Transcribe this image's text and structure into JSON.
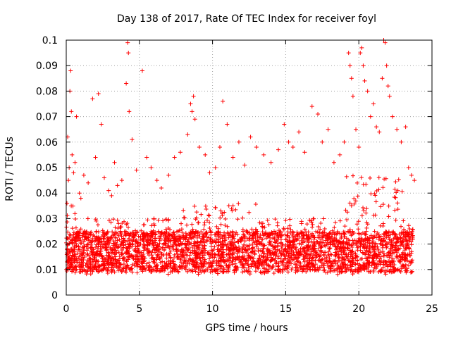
{
  "chart_data": {
    "type": "scatter",
    "title": "Day 138 of 2017, Rate Of TEC Index for receiver foyl",
    "xlabel": "GPS time / hours",
    "ylabel": "ROTI / TECUs",
    "xlim": [
      0,
      25
    ],
    "ylim": [
      0,
      0.1
    ],
    "xticks": [
      "0",
      "5",
      "10",
      "15",
      "20",
      "25"
    ],
    "yticks": [
      "0",
      "0.01",
      "0.02",
      "0.03",
      "0.04",
      "0.05",
      "0.06",
      "0.07",
      "0.08",
      "0.09",
      "0.1"
    ],
    "grid": true,
    "marker": "plus",
    "colors": {
      "series": "#ff0000",
      "grid": "#a0a0a0",
      "frame": "#000000"
    },
    "series": [
      {
        "x": [
          0.05,
          0.1,
          0.15,
          0.2,
          0.25,
          0.3,
          0.35,
          0.4,
          0.5,
          0.6,
          0.7,
          0.9,
          1.0,
          1.2,
          1.5,
          1.8,
          2.0,
          2.2,
          2.4,
          2.6,
          2.9,
          3.1,
          3.3,
          3.5,
          3.8,
          4.1,
          4.2,
          4.25,
          4.3,
          4.5,
          4.8,
          5.2,
          5.5,
          5.8,
          6.2,
          6.5,
          7.0,
          7.4,
          7.8,
          8.3,
          8.5,
          8.6,
          8.7,
          8.8,
          9.1,
          9.5,
          9.8,
          10.2,
          10.5,
          10.7,
          11.0,
          11.4,
          11.8,
          12.2,
          12.6,
          13.0,
          13.5,
          14.0,
          14.5,
          14.9,
          15.2,
          15.5,
          15.9,
          16.3,
          16.8,
          17.2,
          17.5,
          17.9,
          18.3,
          18.7,
          19.0,
          19.3,
          19.4,
          19.5,
          19.6,
          19.8,
          20.0,
          20.1,
          20.2,
          20.3,
          20.4,
          20.6,
          20.8,
          21.0,
          21.2,
          21.4,
          21.6,
          21.7,
          21.8,
          21.9,
          22.0,
          22.1,
          22.3,
          22.6,
          22.9,
          23.2,
          23.4,
          23.6,
          23.8
        ],
        "y": [
          0.036,
          0.062,
          0.045,
          0.05,
          0.08,
          0.088,
          0.072,
          0.055,
          0.048,
          0.052,
          0.07,
          0.04,
          0.038,
          0.047,
          0.044,
          0.077,
          0.054,
          0.079,
          0.067,
          0.046,
          0.041,
          0.039,
          0.052,
          0.043,
          0.045,
          0.083,
          0.099,
          0.095,
          0.072,
          0.061,
          0.049,
          0.088,
          0.054,
          0.05,
          0.045,
          0.042,
          0.047,
          0.054,
          0.056,
          0.063,
          0.075,
          0.072,
          0.078,
          0.069,
          0.058,
          0.055,
          0.048,
          0.05,
          0.058,
          0.076,
          0.067,
          0.054,
          0.06,
          0.051,
          0.062,
          0.058,
          0.055,
          0.052,
          0.057,
          0.067,
          0.06,
          0.058,
          0.064,
          0.056,
          0.074,
          0.071,
          0.06,
          0.065,
          0.052,
          0.055,
          0.06,
          0.095,
          0.09,
          0.085,
          0.078,
          0.065,
          0.058,
          0.095,
          0.097,
          0.09,
          0.084,
          0.08,
          0.07,
          0.075,
          0.066,
          0.064,
          0.085,
          0.1,
          0.099,
          0.09,
          0.082,
          0.078,
          0.07,
          0.065,
          0.06,
          0.066,
          0.05,
          0.047,
          0.045
        ]
      }
    ],
    "band": {
      "x_start": 0.0,
      "x_end": 23.7,
      "y_low": 0.008,
      "y_high_typical": 0.03,
      "y_high_peak": 0.047
    }
  }
}
